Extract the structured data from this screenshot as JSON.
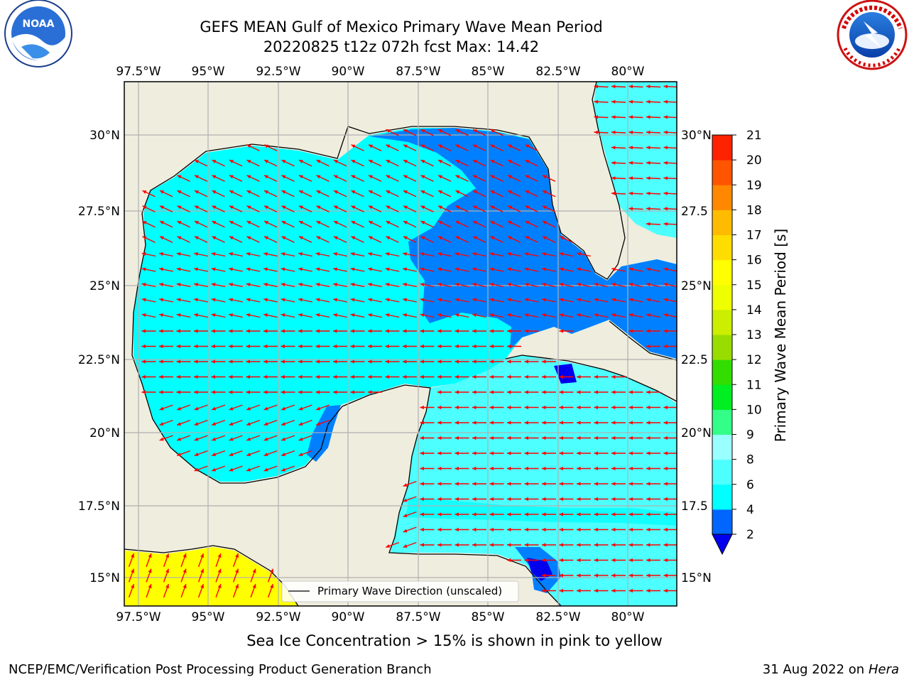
{
  "header": {
    "title_line1": "GEFS MEAN Gulf of Mexico Primary Wave Mean Period",
    "title_line2": "20220825 t12z 072h fcst   Max: 14.42"
  },
  "logos": {
    "left": {
      "name": "NOAA logo",
      "text": "NOAA"
    },
    "right": {
      "name": "National Weather Service logo"
    }
  },
  "map": {
    "lon_ticks": [
      "97.5°W",
      "95°W",
      "92.5°W",
      "90°W",
      "87.5°W",
      "85°W",
      "82.5°W",
      "80°W"
    ],
    "lat_ticks_left": [
      "30°N",
      "27.5°N",
      "25°N",
      "22.5°N",
      "20°N",
      "17.5°N",
      "15°N"
    ],
    "lat_ticks_right": [
      "30°N",
      "27.5",
      "25°N",
      "22.5",
      "20°N",
      "17.5",
      "15°N"
    ],
    "legend_label": "Primary Wave Direction (unscaled)",
    "colors": {
      "land": "#efedde",
      "outside": "#ffffff",
      "level_2_4": "#0080ff",
      "level_4_6": "#00ffff",
      "level_6_8": "#4dffff",
      "below_2": "#0000ee",
      "sea_ice": "#ffff00",
      "arrows": "#ff0000"
    }
  },
  "colorbar": {
    "label": "Primary Wave Mean Period [s]",
    "ticks": [
      "2",
      "4",
      "6",
      "8",
      "9",
      "10",
      "11",
      "12",
      "13",
      "14",
      "15",
      "16",
      "17",
      "18",
      "19",
      "20",
      "21"
    ],
    "colors": [
      "#0066ff",
      "#00ffff",
      "#4dffff",
      "#99ffff",
      "#33ff88",
      "#00ee22",
      "#33dd00",
      "#99dd00",
      "#ccee00",
      "#eeff00",
      "#ffff00",
      "#ffdd00",
      "#ffbb00",
      "#ff8800",
      "#ff5500",
      "#ff2200",
      "#ff0000"
    ],
    "under_color": "#0000ee"
  },
  "footer": {
    "subtitle": "Sea Ice Concentration > 15% is shown in pink to yellow",
    "credit": "NCEP/EMC/Verification Post Processing Product Generation Branch",
    "date": "31 Aug 2022 on",
    "host": "Hera"
  }
}
